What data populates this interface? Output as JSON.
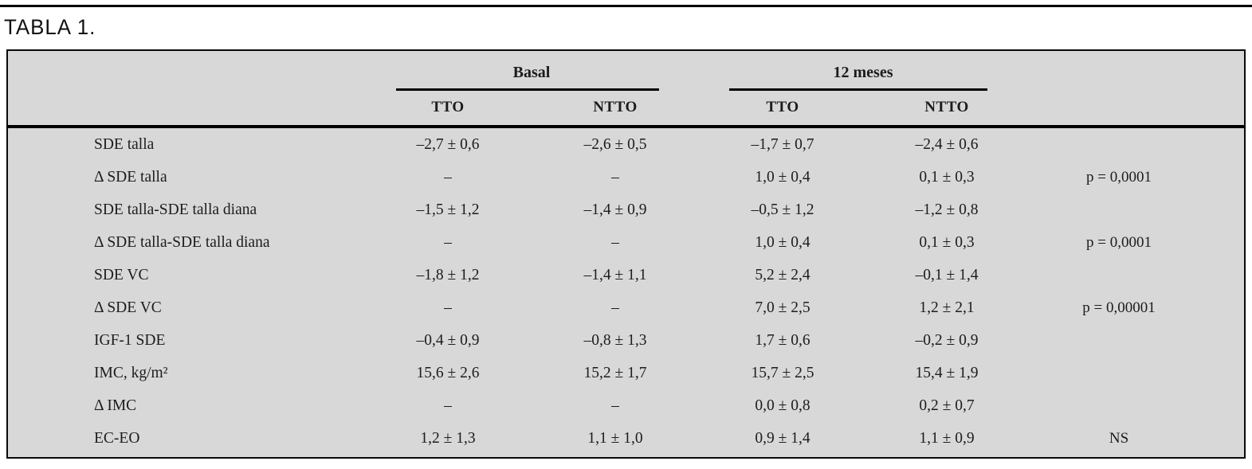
{
  "page": {
    "title": "TABLA 1."
  },
  "colors": {
    "table_bg": "#d8d8d8",
    "rule": "#000000",
    "text": "#1c1c1c"
  },
  "table": {
    "column_groups": [
      {
        "label": "Basal"
      },
      {
        "label": "12 meses"
      }
    ],
    "sub_headers": [
      "TTO",
      "NTTO",
      "TTO",
      "NTTO"
    ],
    "rows": [
      {
        "label": "SDE talla",
        "values": [
          "–2,7 ± 0,6",
          "–2,6 ± 0,5",
          "–1,7 ± 0,7",
          "–2,4 ± 0,6"
        ],
        "p": ""
      },
      {
        "label": "Δ SDE talla",
        "values": [
          "–",
          "–",
          "1,0 ± 0,4",
          "0,1 ± 0,3"
        ],
        "p": "p = 0,0001"
      },
      {
        "label": "SDE talla-SDE talla diana",
        "values": [
          "–1,5 ± 1,2",
          "–1,4 ± 0,9",
          "–0,5 ± 1,2",
          "–1,2 ± 0,8"
        ],
        "p": ""
      },
      {
        "label": "Δ SDE talla-SDE talla diana",
        "values": [
          "–",
          "–",
          "1,0 ± 0,4",
          "0,1 ± 0,3"
        ],
        "p": "p = 0,0001"
      },
      {
        "label": "SDE VC",
        "values": [
          "–1,8 ± 1,2",
          "–1,4 ± 1,1",
          "5,2 ± 2,4",
          "–0,1 ± 1,4"
        ],
        "p": ""
      },
      {
        "label": "Δ SDE VC",
        "values": [
          "–",
          "–",
          "7,0 ± 2,5",
          "1,2 ± 2,1"
        ],
        "p": "p = 0,00001"
      },
      {
        "label": "IGF-1 SDE",
        "values": [
          "–0,4 ± 0,9",
          "–0,8 ± 1,3",
          "1,7 ± 0,6",
          "–0,2 ± 0,9"
        ],
        "p": ""
      },
      {
        "label": "IMC, kg/m²",
        "values": [
          "15,6 ± 2,6",
          "15,2 ± 1,7",
          "15,7 ± 2,5",
          "15,4 ± 1,9"
        ],
        "p": ""
      },
      {
        "label": "Δ IMC",
        "values": [
          "–",
          "–",
          "0,0 ± 0,8",
          "0,2 ± 0,7"
        ],
        "p": ""
      },
      {
        "label": "EC-EO",
        "values": [
          "1,2 ± 1,3",
          "1,1 ± 1,0",
          "0,9 ± 1,4",
          "1,1 ± 0,9"
        ],
        "p": "NS"
      }
    ]
  }
}
